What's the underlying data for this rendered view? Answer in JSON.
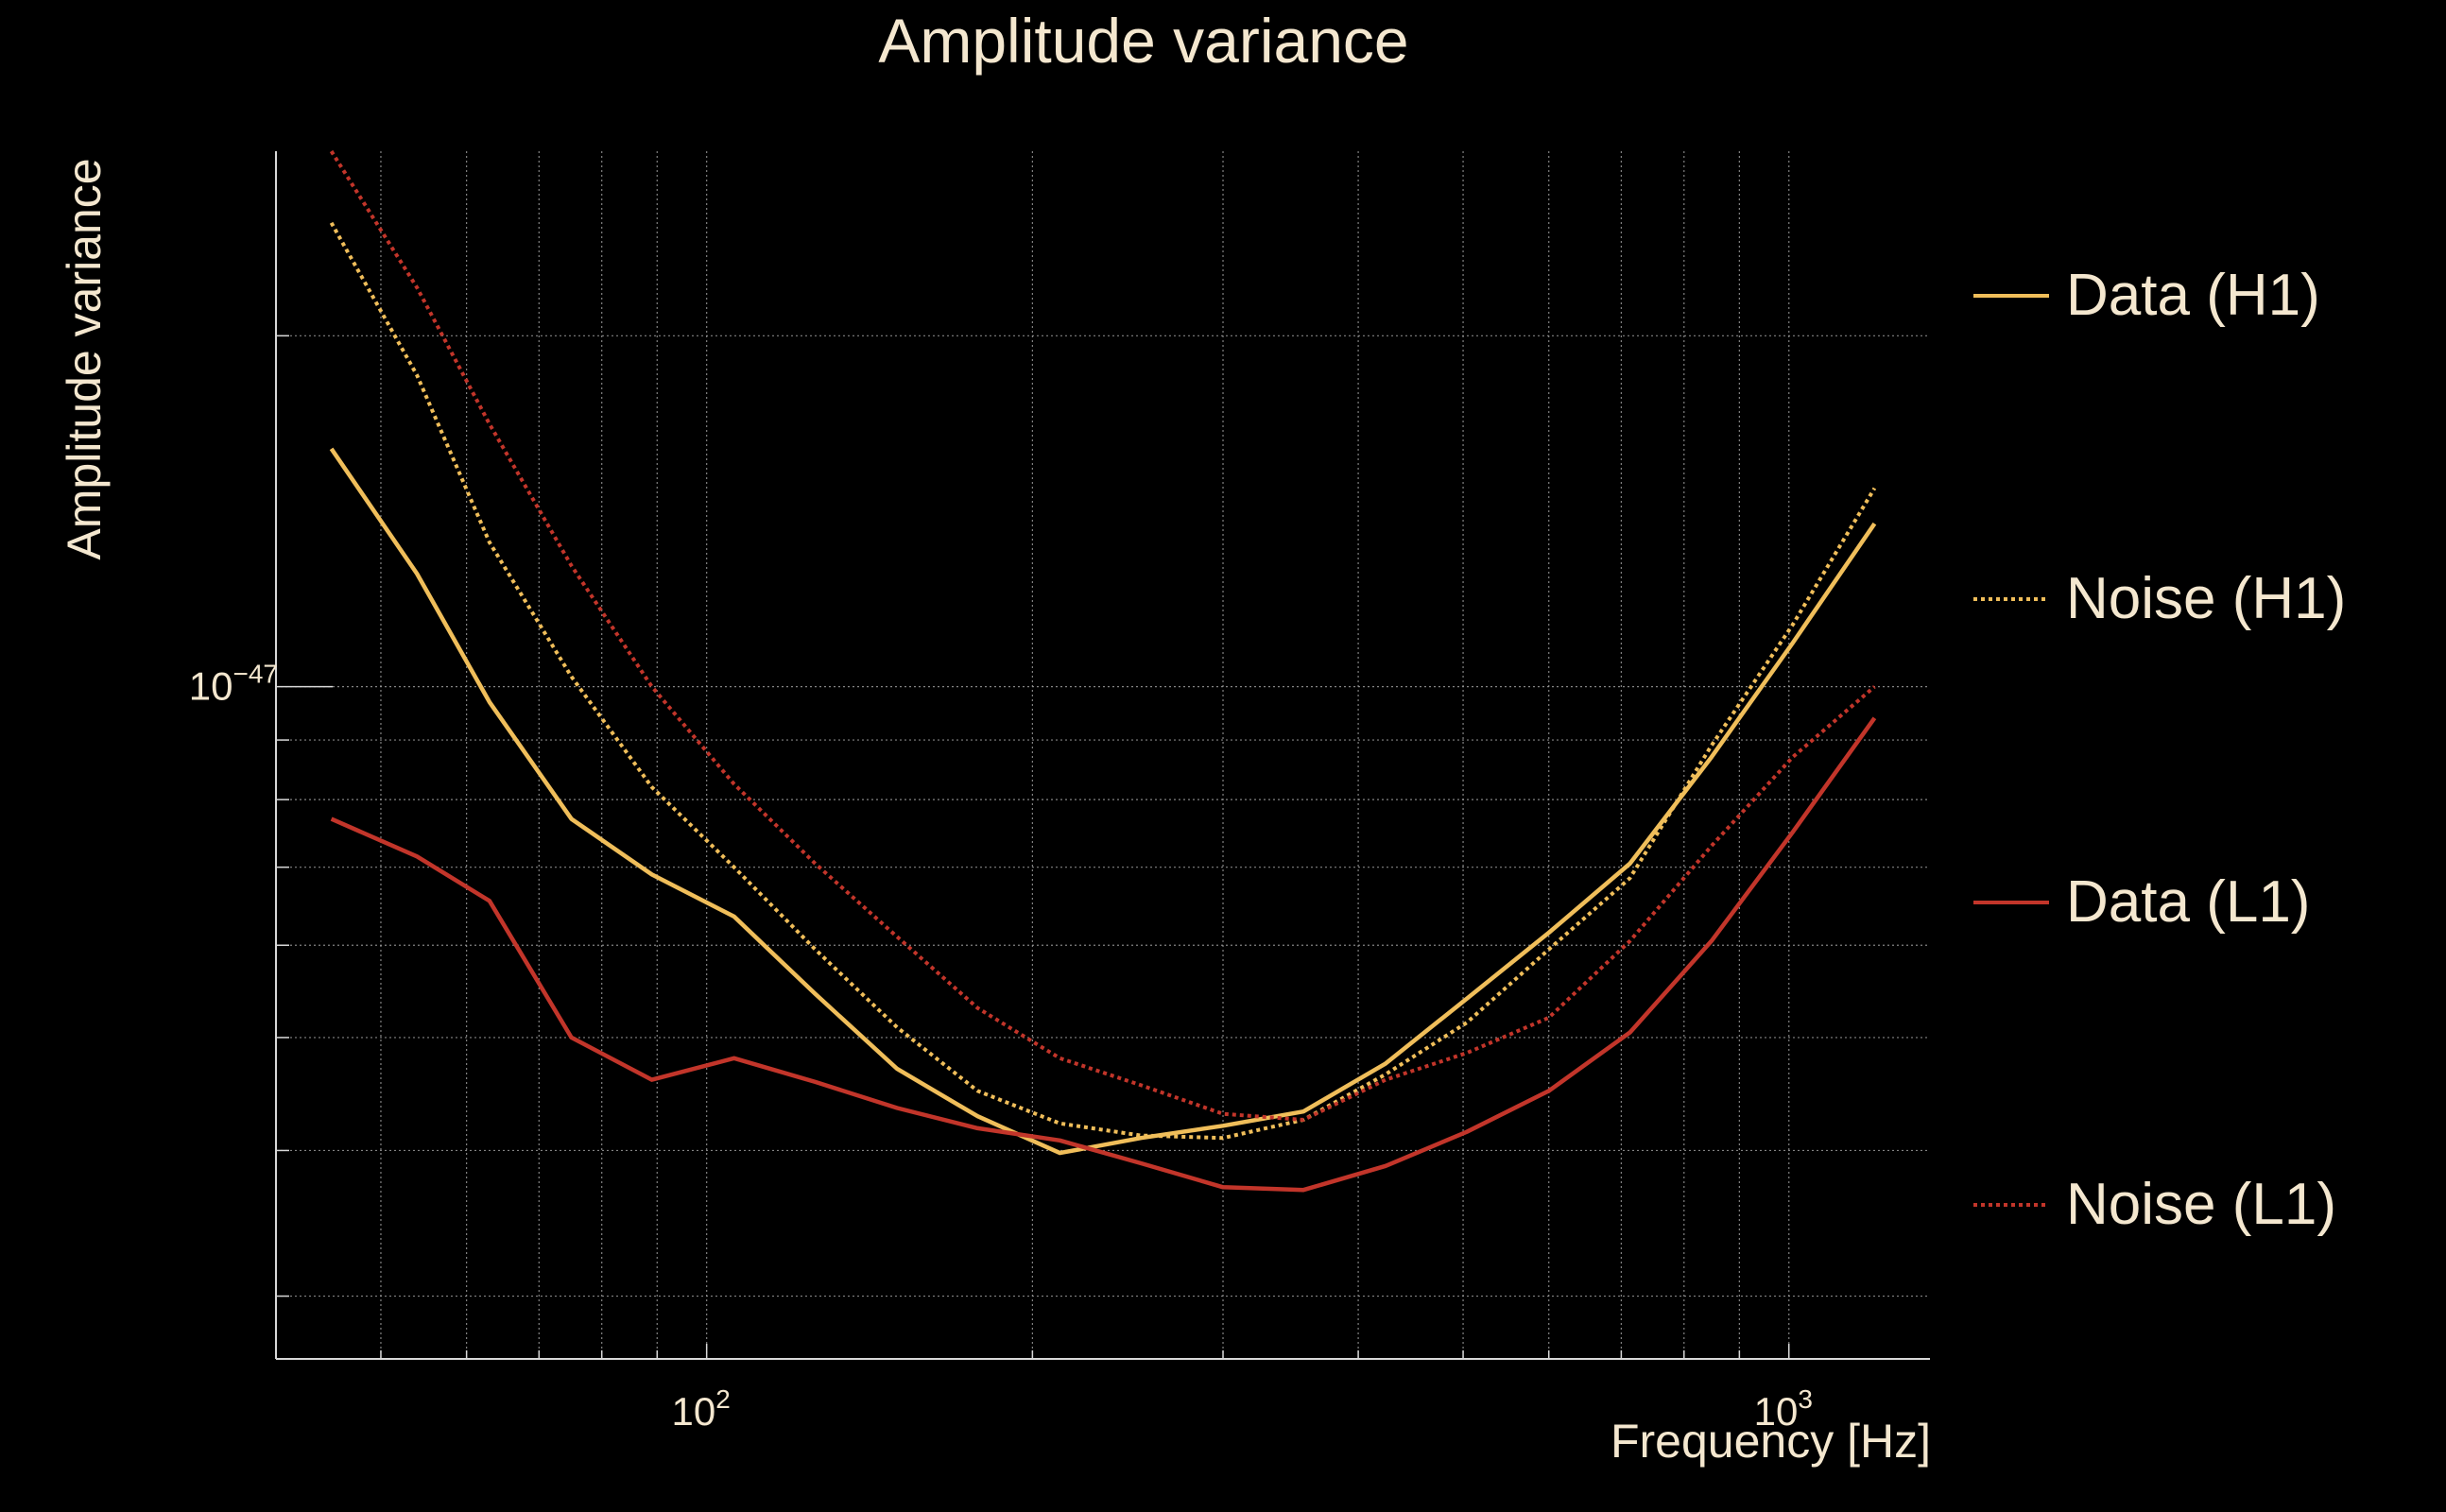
{
  "chart_data": {
    "type": "line",
    "title": "Amplitude variance",
    "xlabel": "Frequency [Hz]",
    "ylabel": "Amplitude variance",
    "xscale": "log",
    "yscale": "log",
    "xlim": [
      40,
      1350
    ],
    "ylim": [
      2.65e-48,
      2.88e-47
    ],
    "x_ticks": [
      {
        "value": 100,
        "base": "10",
        "exp": "2"
      },
      {
        "value": 1000,
        "base": "10",
        "exp": "3"
      }
    ],
    "y_ticks": [
      {
        "value": 1e-47,
        "base": "10",
        "exp": "−47"
      }
    ],
    "grid": true,
    "legend_position": "right",
    "x": [
      45,
      54,
      63,
      75,
      89,
      106,
      126,
      150,
      178,
      212,
      252,
      300,
      356,
      424,
      504,
      600,
      713,
      848,
      1008,
      1200
    ],
    "series": [
      {
        "name": "Data (H1)",
        "color": "#f0be5a",
        "dash": "solid",
        "values": [
          1.6e-47,
          1.25e-47,
          9.7e-48,
          7.7e-48,
          6.9e-48,
          6.35e-48,
          5.45e-48,
          4.7e-48,
          4.28e-48,
          3.98e-48,
          4.1e-48,
          4.2e-48,
          4.32e-48,
          4.75e-48,
          5.4e-48,
          6.15e-48,
          7.05e-48,
          8.7e-48,
          1.09e-47,
          1.38e-47
        ]
      },
      {
        "name": "Noise (H1)",
        "color": "#f0be5a",
        "dash": "dotted",
        "values": [
          2.5e-47,
          1.85e-47,
          1.33e-47,
          1.02e-47,
          8.2e-48,
          7e-48,
          5.95e-48,
          5.1e-48,
          4.5e-48,
          4.22e-48,
          4.12e-48,
          4.1e-48,
          4.25e-48,
          4.65e-48,
          5.15e-48,
          5.95e-48,
          6.85e-48,
          8.9e-48,
          1.13e-47,
          1.48e-47
        ]
      },
      {
        "name": "Data (L1)",
        "color": "#c2352a",
        "dash": "solid",
        "values": [
          7.7e-48,
          7.15e-48,
          6.55e-48,
          5e-48,
          4.6e-48,
          4.8e-48,
          4.58e-48,
          4.35e-48,
          4.18e-48,
          4.08e-48,
          3.9e-48,
          3.72e-48,
          3.7e-48,
          3.88e-48,
          4.15e-48,
          4.5e-48,
          5.05e-48,
          6.05e-48,
          7.5e-48,
          9.4e-48
        ]
      },
      {
        "name": "Noise (L1)",
        "color": "#c2352a",
        "dash": "dotted",
        "values": [
          2.88e-47,
          2.2e-47,
          1.68e-47,
          1.27e-47,
          1e-47,
          8.25e-48,
          7.05e-48,
          6.1e-48,
          5.3e-48,
          4.8e-48,
          4.55e-48,
          4.3e-48,
          4.25e-48,
          4.6e-48,
          4.85e-48,
          5.2e-48,
          6.05e-48,
          7.3e-48,
          8.7e-48,
          1e-47
        ]
      }
    ]
  }
}
